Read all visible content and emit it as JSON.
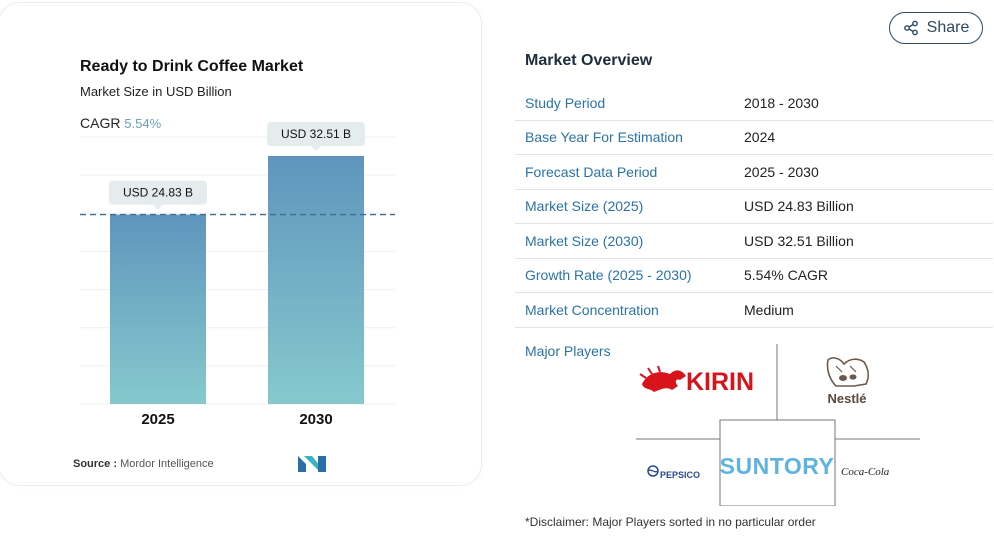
{
  "chart_data": {
    "type": "bar",
    "title": "Ready to Drink Coffee Market",
    "subtitle": "Market Size in USD Billion",
    "cagr_label": "CAGR",
    "cagr_value": "5.54%",
    "categories": [
      "2025",
      "2030"
    ],
    "values": [
      24.83,
      32.51
    ],
    "data_labels": [
      "USD 24.83 B",
      "USD 32.51 B"
    ],
    "ylim": [
      0,
      35
    ],
    "grid": true,
    "reference_line_value": 24.83
  },
  "source": {
    "label": "Source :",
    "name": "Mordor Intelligence"
  },
  "share": {
    "label": "Share",
    "icon": "share-icon"
  },
  "overview": {
    "title": "Market Overview",
    "rows": [
      {
        "label": "Study Period",
        "value": "2018 - 2030"
      },
      {
        "label": "Base Year For Estimation",
        "value": "2024"
      },
      {
        "label": "Forecast Data Period",
        "value": "2025 - 2030"
      },
      {
        "label": "Market Size (2025)",
        "value": "USD 24.83 Billion"
      },
      {
        "label": "Market Size (2030)",
        "value": "USD 32.51 Billion"
      },
      {
        "label": "Growth Rate (2025 - 2030)",
        "value": "5.54% CAGR"
      },
      {
        "label": "Market Concentration",
        "value": "Medium"
      }
    ],
    "major_players_label": "Major Players",
    "players": [
      "KIRIN",
      "Nestlé",
      "PEPSICO",
      "SUNTORY",
      "Coca-Cola"
    ],
    "disclaimer": "*Disclaimer: Major Players sorted in no particular order"
  },
  "colors": {
    "bar_top": "#5f95bd",
    "bar_bottom": "#86c9cd",
    "accent": "#2a73a8",
    "kirin_red": "#d7141c",
    "suntory_blue": "#5fb3e0"
  }
}
